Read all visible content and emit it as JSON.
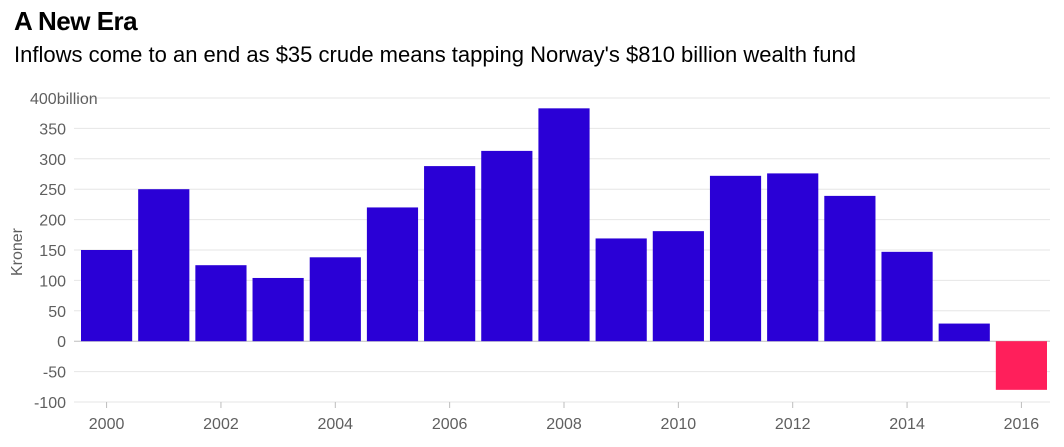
{
  "chart_data": {
    "type": "bar",
    "title": "A New Era",
    "subtitle": "Inflows come to an end as $35 crude means tapping Norway's $810 billion wealth fund",
    "ylabel": "Kroner",
    "y_unit_label": "400billion",
    "categories": [
      "2000",
      "2001",
      "2002",
      "2003",
      "2004",
      "2005",
      "2006",
      "2007",
      "2008",
      "2009",
      "2010",
      "2011",
      "2012",
      "2013",
      "2014",
      "2015",
      "2016"
    ],
    "values": [
      150,
      250,
      125,
      104,
      138,
      220,
      288,
      313,
      383,
      169,
      181,
      272,
      276,
      239,
      147,
      29,
      -80
    ],
    "ylim": [
      -100,
      400
    ],
    "yticks": [
      -100,
      -50,
      0,
      50,
      100,
      150,
      200,
      250,
      300,
      350,
      400
    ],
    "xtick_labels": [
      "2000",
      "2002",
      "2004",
      "2006",
      "2008",
      "2010",
      "2012",
      "2014",
      "2016"
    ],
    "colors": {
      "positive": "#2a00d6",
      "negative": "#ff1f5b"
    },
    "grid": true
  }
}
